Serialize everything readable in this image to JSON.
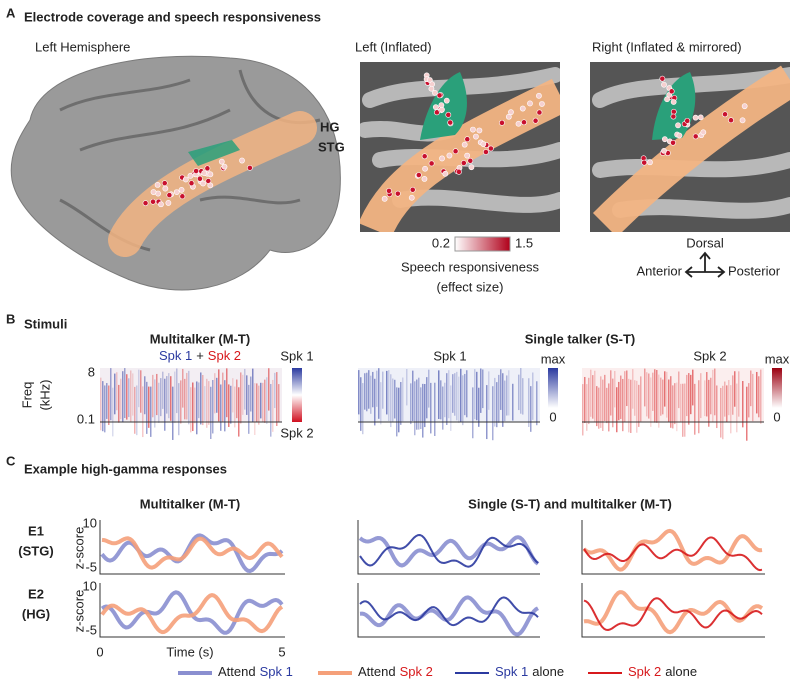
{
  "panel_a": {
    "letter": "A",
    "title": "Electrode coverage and speech responsiveness",
    "views": [
      "Left Hemisphere",
      "Left (Inflated)",
      "Right (Inflated & mirrored)"
    ],
    "regions": [
      "HG",
      "STG"
    ],
    "colorbar": {
      "min": "0.2",
      "max": "1.5",
      "label": "Speech responsiveness",
      "sublabel": "(effect size)"
    },
    "orientation": {
      "up": "Dorsal",
      "left": "Anterior",
      "right": "Posterior"
    }
  },
  "panel_b": {
    "letter": "B",
    "title": "Stimuli",
    "multitalker": {
      "title": "Multitalker (M-T)",
      "subtitle": [
        "Spk 1",
        "+",
        "Spk 2"
      ],
      "ylabel": "Freq",
      "yunit": "(kHz)",
      "yticks": [
        "8",
        "0.1"
      ],
      "legend": [
        "Spk 1",
        "Spk 2"
      ]
    },
    "single": {
      "title": "Single talker (S-T)",
      "speakers": [
        "Spk 1",
        "Spk 2"
      ],
      "scale": [
        "max",
        "0"
      ]
    }
  },
  "panel_c": {
    "letter": "C",
    "title": "Example high-gamma responses",
    "columns": [
      "Multitalker (M-T)",
      "Single (S-T) and multitalker (M-T)"
    ],
    "electrodes": [
      {
        "name": "E1",
        "region": "(STG)"
      },
      {
        "name": "E2",
        "region": "(HG)"
      }
    ],
    "ylabel": "z-score",
    "yticks": [
      "10",
      "-5"
    ],
    "xticks": [
      "0",
      "5"
    ],
    "xlabel": "Time (s)",
    "legend": [
      {
        "prefix": "Attend",
        "speaker": "Spk 1"
      },
      {
        "prefix": "Attend",
        "speaker": "Spk 2"
      },
      {
        "speaker": "Spk 1",
        "suffix": "alone"
      },
      {
        "speaker": "Spk 2",
        "suffix": "alone"
      }
    ]
  }
}
